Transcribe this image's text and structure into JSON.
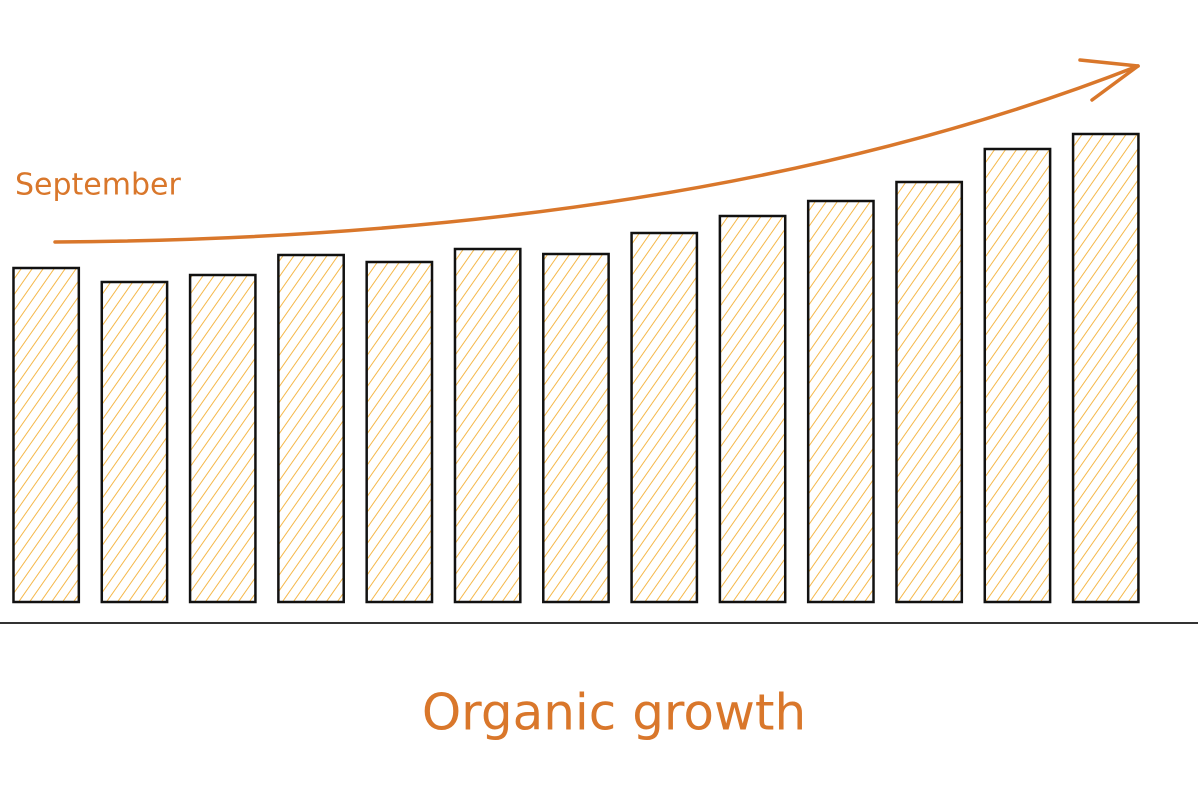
{
  "chart_data": {
    "type": "bar",
    "title": "Organic growth",
    "annotation": "September",
    "categories": [
      null,
      null,
      null,
      null,
      null,
      null,
      null,
      null,
      null,
      null,
      null,
      null,
      null
    ],
    "values": [
      334,
      320,
      327,
      347,
      340,
      353,
      348,
      369,
      386,
      401,
      420,
      453,
      468
    ],
    "color": "#f5b84a",
    "annotation_color": "#d9772b",
    "ylim": [
      0,
      602
    ]
  }
}
